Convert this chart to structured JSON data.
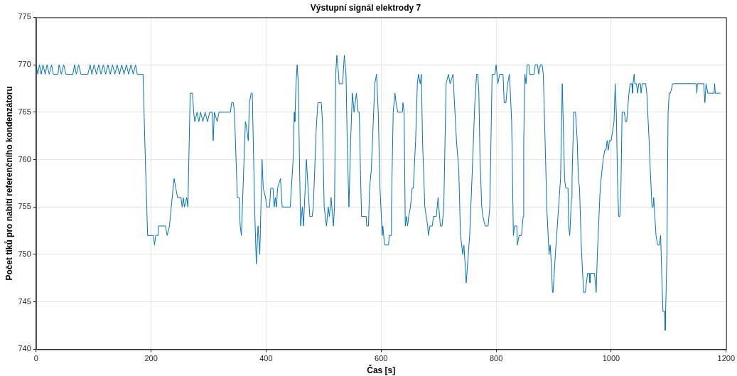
{
  "chart_data": {
    "type": "line",
    "title": "Výstupní signál elektrody 7",
    "xlabel": "Čas [s]",
    "ylabel": "Počet tiků pro nabití referenčního kondenzátoru",
    "xlim": [
      0,
      1200
    ],
    "xticks": [
      0,
      200,
      400,
      600,
      800,
      1000,
      1200
    ],
    "ylim": [
      740,
      775
    ],
    "yticks": [
      740,
      745,
      750,
      755,
      760,
      765,
      770,
      775
    ],
    "grid": true,
    "legend": false,
    "marker": "none",
    "line_style": "solid",
    "series": [
      {
        "color": "#0072bd",
        "x": [
          0,
          3,
          6,
          9,
          12,
          16,
          19,
          23,
          27,
          30,
          38,
          40,
          44,
          48,
          52,
          64,
          67,
          70,
          74,
          78,
          90,
          94,
          97,
          101,
          105,
          109,
          113,
          117,
          121,
          125,
          129,
          133,
          137,
          141,
          145,
          149,
          153,
          157,
          161,
          165,
          169,
          173,
          176,
          186,
          190,
          194,
          204,
          206,
          208,
          212,
          213,
          225,
          228,
          232,
          235,
          240,
          243,
          246,
          252,
          254,
          256,
          258,
          262,
          264,
          268,
          272,
          274,
          276,
          280,
          283,
          286,
          290,
          294,
          298,
          302,
          306,
          308,
          310,
          315,
          318,
          338,
          340,
          343,
          345,
          350,
          353,
          355,
          357,
          364,
          367,
          369,
          371,
          374,
          376,
          380,
          383,
          386,
          389,
          393,
          395,
          399,
          401,
          406,
          408,
          412,
          414,
          416,
          418,
          420,
          425,
          427,
          428,
          442,
          447,
          449,
          450,
          452,
          454,
          456,
          458,
          460,
          463,
          465,
          468,
          470,
          473,
          476,
          480,
          482,
          484,
          487,
          490,
          496,
          498,
          501,
          505,
          508,
          510,
          513,
          517,
          519,
          521,
          523,
          526,
          527,
          533,
          536,
          539,
          541,
          544,
          547,
          550,
          553,
          557,
          560,
          562,
          564,
          566,
          574,
          575,
          578,
          580,
          583,
          589,
          592,
          595,
          598,
          602,
          603,
          606,
          613,
          614,
          617,
          618,
          621,
          624,
          626,
          629,
          637,
          638,
          640,
          642,
          644,
          646,
          648,
          651,
          654,
          656,
          660,
          663,
          665,
          668,
          670,
          672,
          676,
          681,
          682,
          685,
          689,
          691,
          696,
          699,
          703,
          706,
          709,
          713,
          717,
          720,
          725,
          731,
          735,
          738,
          742,
          744,
          745,
          748,
          754,
          758,
          763,
          766,
          768,
          770,
          772,
          775,
          777,
          781,
          786,
          789,
          793,
          798,
          800,
          803,
          806,
          812,
          814,
          817,
          820,
          823,
          824,
          827,
          830,
          832,
          836,
          837,
          840,
          844,
          847,
          848,
          850,
          852,
          854,
          857,
          858,
          866,
          868,
          872,
          874,
          877,
          880,
          882,
          886,
          888,
          892,
          894,
          896,
          898,
          899,
          903,
          912,
          915,
          919,
          921,
          925,
          926,
          928,
          931,
          932,
          935,
          938,
          941,
          943,
          945,
          948,
          952,
          955,
          957,
          959,
          962,
          963,
          964,
          971,
          974,
          976,
          981,
          986,
          989,
          991,
          993,
          995,
          997,
          1000,
          1005,
          1007,
          1009,
          1011,
          1013,
          1015,
          1017,
          1019,
          1023,
          1025,
          1027,
          1031,
          1033,
          1036,
          1037,
          1038,
          1040,
          1041,
          1044,
          1046,
          1048,
          1051,
          1052,
          1054,
          1060,
          1062,
          1066,
          1068,
          1071,
          1073,
          1074,
          1075,
          1078,
          1081,
          1084,
          1086,
          1088,
          1090,
          1093,
          1094,
          1097,
          1099,
          1101,
          1103,
          1107,
          1148,
          1149,
          1150,
          1161,
          1163,
          1165,
          1168,
          1179,
          1180,
          1181,
          1190
        ],
        "values": [
          770,
          769,
          770,
          769,
          770,
          769,
          770,
          769,
          770,
          769,
          769,
          770,
          769,
          770,
          769,
          769,
          770,
          769,
          770,
          769,
          769,
          770,
          769,
          770,
          769,
          770,
          769,
          770,
          769,
          770,
          769,
          770,
          769,
          770,
          769,
          770,
          769,
          770,
          769,
          770,
          769,
          770,
          769,
          769,
          760,
          752,
          752,
          751,
          752,
          752,
          753,
          753,
          752,
          753,
          755,
          758,
          757,
          756,
          756,
          755,
          756,
          755,
          756,
          755,
          767,
          767,
          765,
          764,
          765,
          764,
          765,
          764,
          765,
          764,
          765,
          765,
          762,
          765,
          764,
          765,
          765,
          766,
          766,
          765,
          756,
          756,
          753,
          752,
          764,
          763,
          762,
          766,
          767,
          767,
          755,
          749,
          753,
          750,
          760,
          757,
          756,
          755,
          755,
          757,
          757,
          755,
          756,
          755,
          757,
          758,
          756,
          755,
          755,
          760,
          765,
          764,
          768,
          770,
          768,
          760,
          753,
          755,
          753,
          757,
          760,
          757,
          754,
          754,
          755,
          758,
          763,
          766,
          766,
          764,
          755,
          753,
          755,
          754,
          756,
          753,
          755,
          769,
          771,
          769,
          768,
          768,
          771,
          769,
          762,
          755,
          762,
          767,
          765,
          767,
          765,
          765,
          759,
          754,
          754,
          753,
          753,
          757,
          759,
          768,
          769,
          765,
          757,
          752,
          753,
          751,
          751,
          752,
          752,
          755,
          765,
          767,
          766,
          765,
          765,
          766,
          765,
          753,
          754,
          753,
          754,
          755,
          757,
          757,
          762,
          768,
          769,
          768,
          769,
          762,
          755,
          753,
          752,
          753,
          753,
          754,
          754,
          756,
          753,
          753,
          755,
          768,
          769,
          768,
          769,
          762,
          759,
          752,
          750,
          751,
          750,
          747,
          752,
          758,
          766,
          769,
          769,
          767,
          760,
          755,
          754,
          753,
          753,
          755,
          769,
          769,
          770,
          768,
          769,
          769,
          766,
          766,
          768,
          769,
          768,
          764,
          752,
          753,
          753,
          751,
          752,
          752,
          754,
          762,
          769,
          768,
          770,
          770,
          769,
          769,
          770,
          770,
          769,
          770,
          770,
          769,
          760,
          755,
          750,
          751,
          749,
          746,
          746,
          750,
          758,
          768,
          758,
          757,
          757,
          753,
          752,
          756,
          758,
          765,
          765,
          762,
          758,
          757,
          751,
          746,
          746,
          747,
          748,
          748,
          747,
          748,
          748,
          746,
          750,
          757,
          760,
          761,
          761,
          762,
          761,
          762,
          762,
          764,
          768,
          765,
          758,
          754,
          754,
          757,
          765,
          765,
          764,
          764,
          767,
          768,
          768,
          767,
          768,
          769,
          768,
          768,
          767,
          768,
          768,
          767,
          768,
          768,
          767,
          762,
          759,
          755,
          755,
          756,
          755,
          752,
          751,
          751,
          752,
          748,
          744,
          744,
          742,
          750,
          765,
          767,
          767,
          768,
          768,
          767,
          768,
          768,
          766,
          768,
          767,
          767,
          768,
          767,
          767
        ]
      }
    ]
  }
}
